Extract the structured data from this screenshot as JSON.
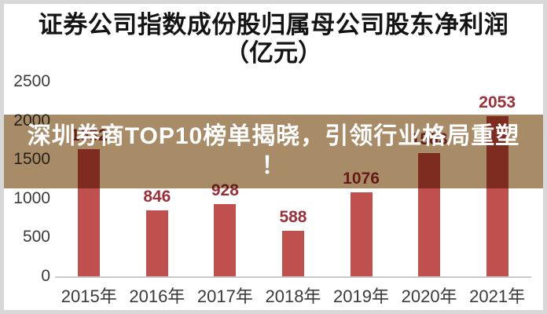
{
  "title": {
    "line1": "证券公司指数成份股归属母公司股东净利润",
    "line2": "（亿元）"
  },
  "banner": {
    "line1": "深圳券商TOP10榜单揭晓，引领行业格局重塑",
    "line2": "！",
    "bg_color": "#a88c68",
    "text_color": "#ffffff"
  },
  "chart_data": {
    "type": "bar",
    "title": "证券公司指数成份股归属母公司股东净利润（亿元）",
    "xlabel": "",
    "ylabel": "亿元",
    "categories": [
      "2015年",
      "2016年",
      "2017年",
      "2018年",
      "2019年",
      "2020年",
      "2021年"
    ],
    "values": [
      1632,
      846,
      928,
      588,
      1076,
      1583,
      2053
    ],
    "value_labels": [
      "1632",
      "846",
      "928",
      "588",
      "1076",
      "1583",
      "2053"
    ],
    "ylim": [
      0,
      2500
    ],
    "yticks": [
      0,
      500,
      1000,
      1500,
      2000,
      2500
    ],
    "grid": false,
    "legend": false,
    "bar_color": "#c0504e",
    "value_label_color": "#9c3038",
    "axis_line_color": "#c9c9c9",
    "tick_text_color": "#3a3a3a"
  }
}
